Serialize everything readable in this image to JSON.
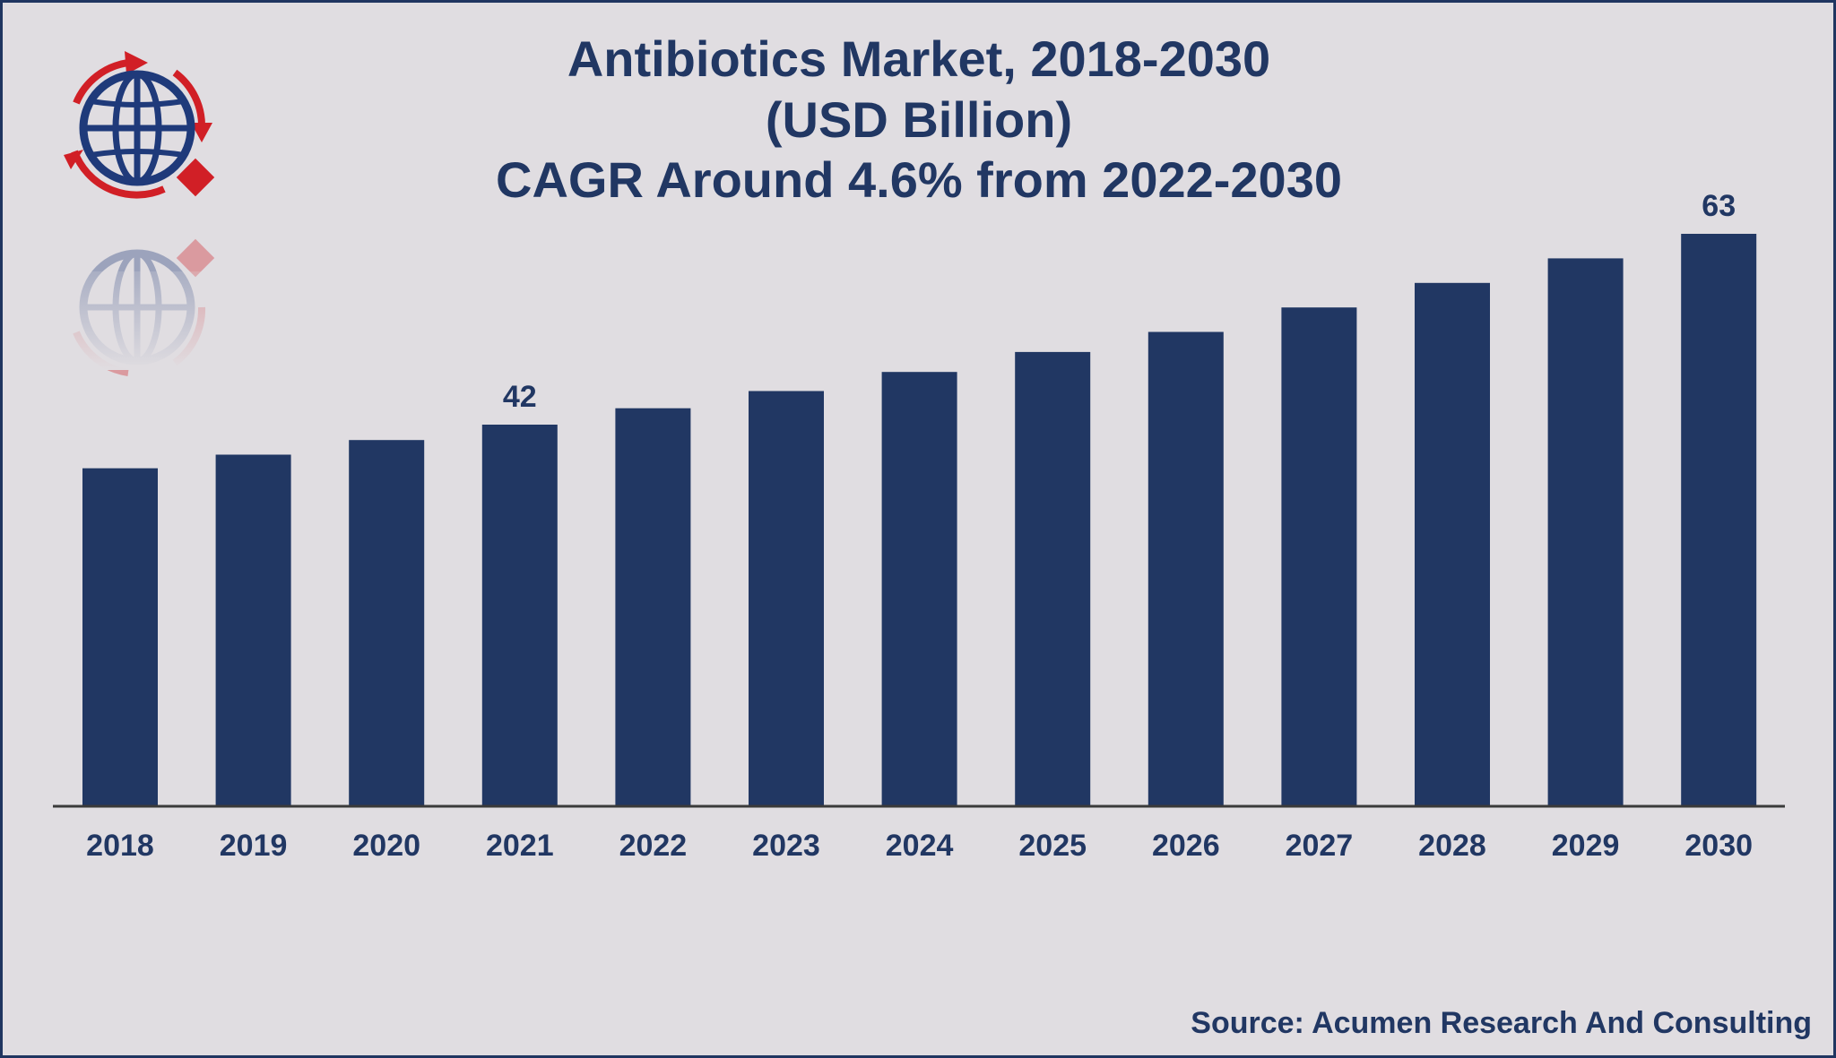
{
  "colors": {
    "background": "#e0dde1",
    "bar": "#213763",
    "text": "#213763",
    "axis": "#3a3a3a",
    "logo_red": "#d11f26",
    "logo_blue": "#1f3a7a"
  },
  "logo": {
    "icon": "globe-logo-icon"
  },
  "source": "Source: Acumen Research And Consulting",
  "chart_data": {
    "type": "bar",
    "title": "Antibiotics Market, 2018-2030",
    "subtitle": "(USD Billion)",
    "subtitle2": "CAGR Around 4.6% from 2022-2030",
    "categories": [
      "2018",
      "2019",
      "2020",
      "2021",
      "2022",
      "2023",
      "2024",
      "2025",
      "2026",
      "2027",
      "2028",
      "2029",
      "2030"
    ],
    "values": [
      37.2,
      38.7,
      40.3,
      42,
      43.8,
      45.7,
      47.8,
      50,
      52.2,
      54.9,
      57.6,
      60.3,
      63
    ],
    "data_labels": [
      "",
      "",
      "",
      "42",
      "",
      "",
      "",
      "",
      "",
      "",
      "",
      "",
      "63"
    ],
    "ylim": [
      0,
      63
    ],
    "grid": false,
    "legend": "none"
  }
}
